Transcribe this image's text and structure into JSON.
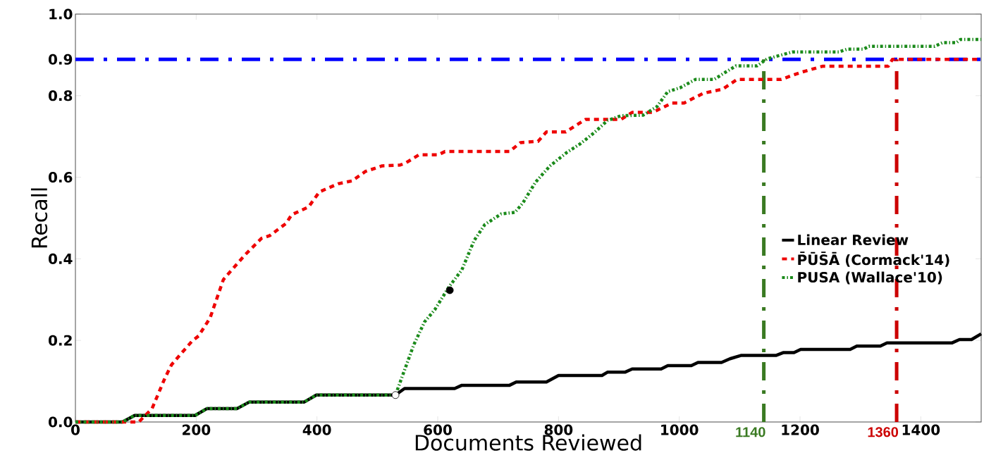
{
  "chart_data": {
    "type": "line",
    "xlabel": "Documents Reviewed",
    "ylabel": "Recall",
    "xlim": [
      0,
      1500
    ],
    "ylim": [
      0,
      1.0
    ],
    "xticks": [
      0,
      200,
      400,
      600,
      800,
      1000,
      1200,
      1400
    ],
    "yticks": [
      {
        "value": 0,
        "label": "0.0"
      },
      {
        "value": 0.2,
        "label": "0.2"
      },
      {
        "value": 0.4,
        "label": "0.4"
      },
      {
        "value": 0.6,
        "label": "0.6"
      },
      {
        "value": 0.8,
        "label": "0.8"
      },
      {
        "value": 0.889,
        "label": "0.9"
      },
      {
        "value": 1.0,
        "label": "1.0"
      }
    ],
    "legend": "right",
    "grid": false,
    "series": [
      {
        "name": "Linear Review",
        "color": "#000000",
        "line_style": "solid",
        "x": [
          0,
          78,
          98,
          198,
          218,
          268,
          288,
          379,
          399,
          530,
          545,
          628,
          640,
          719,
          730,
          780,
          800,
          872,
          881,
          910,
          922,
          970,
          981,
          1020,
          1031,
          1070,
          1084,
          1102,
          1160,
          1172,
          1190,
          1201,
          1283,
          1294,
          1333,
          1344,
          1452,
          1464,
          1484,
          1500
        ],
        "values": [
          0,
          0,
          0.016,
          0.016,
          0.033,
          0.033,
          0.049,
          0.049,
          0.066,
          0.066,
          0.082,
          0.082,
          0.09,
          0.09,
          0.098,
          0.098,
          0.114,
          0.114,
          0.122,
          0.122,
          0.13,
          0.13,
          0.138,
          0.138,
          0.146,
          0.146,
          0.155,
          0.163,
          0.163,
          0.17,
          0.17,
          0.178,
          0.178,
          0.186,
          0.186,
          0.194,
          0.194,
          0.202,
          0.202,
          0.216
        ]
      },
      {
        "name": "P̄ŪS̄Ā (Cormack'14)",
        "color": "#ee0000",
        "line_style": "dashed",
        "x": [
          0,
          105,
          127,
          148,
          159,
          177,
          193,
          204,
          223,
          245,
          259,
          281,
          308,
          322,
          349,
          358,
          386,
          404,
          435,
          458,
          480,
          508,
          538,
          547,
          569,
          601,
          612,
          719,
          737,
          766,
          780,
          812,
          845,
          904,
          922,
          956,
          988,
          1008,
          1040,
          1072,
          1096,
          1169,
          1201,
          1237,
          1346,
          1353,
          1500
        ],
        "values": [
          0,
          0,
          0.033,
          0.107,
          0.14,
          0.171,
          0.198,
          0.211,
          0.255,
          0.349,
          0.373,
          0.41,
          0.45,
          0.457,
          0.487,
          0.508,
          0.527,
          0.564,
          0.584,
          0.591,
          0.614,
          0.628,
          0.63,
          0.635,
          0.655,
          0.655,
          0.663,
          0.663,
          0.685,
          0.688,
          0.711,
          0.711,
          0.742,
          0.742,
          0.759,
          0.759,
          0.782,
          0.782,
          0.806,
          0.816,
          0.84,
          0.84,
          0.857,
          0.872,
          0.872,
          0.889,
          0.889
        ]
      },
      {
        "name": "PUSA (Wallace'10)",
        "color": "#1a8a1a",
        "line_style": "dotted",
        "x": [
          0,
          78,
          98,
          198,
          218,
          268,
          288,
          379,
          399,
          530,
          560,
          578,
          595,
          619,
          640,
          660,
          678,
          705,
          728,
          741,
          762,
          786,
          814,
          836,
          859,
          881,
          904,
          940,
          963,
          981,
          1001,
          1027,
          1058,
          1076,
          1094,
          1129,
          1145,
          1187,
          1264,
          1278,
          1305,
          1314,
          1423,
          1436,
          1459,
          1466,
          1500
        ],
        "values": [
          0,
          0,
          0.016,
          0.016,
          0.033,
          0.033,
          0.049,
          0.049,
          0.066,
          0.066,
          0.188,
          0.245,
          0.275,
          0.332,
          0.373,
          0.444,
          0.484,
          0.51,
          0.514,
          0.537,
          0.588,
          0.628,
          0.661,
          0.682,
          0.709,
          0.739,
          0.751,
          0.752,
          0.773,
          0.81,
          0.819,
          0.84,
          0.84,
          0.857,
          0.873,
          0.873,
          0.89,
          0.907,
          0.907,
          0.914,
          0.914,
          0.921,
          0.921,
          0.93,
          0.93,
          0.938,
          0.938
        ]
      },
      {
        "type": "scatter",
        "color": "#000000",
        "marker": "circle",
        "x": [
          620
        ],
        "values": [
          0.323
        ]
      },
      {
        "type": "scatter",
        "color": "#ffffff",
        "marker": "circle",
        "x": [
          530
        ],
        "values": [
          0.066
        ]
      }
    ],
    "ref_lines": [
      {
        "axis": "y",
        "value": 0.889,
        "color": "#0000ff"
      },
      {
        "axis": "x",
        "value": 1140,
        "label": "1140",
        "color": "#3a7a22"
      },
      {
        "axis": "x",
        "value": 1360,
        "label": "1360",
        "color": "#cc0000"
      }
    ]
  }
}
